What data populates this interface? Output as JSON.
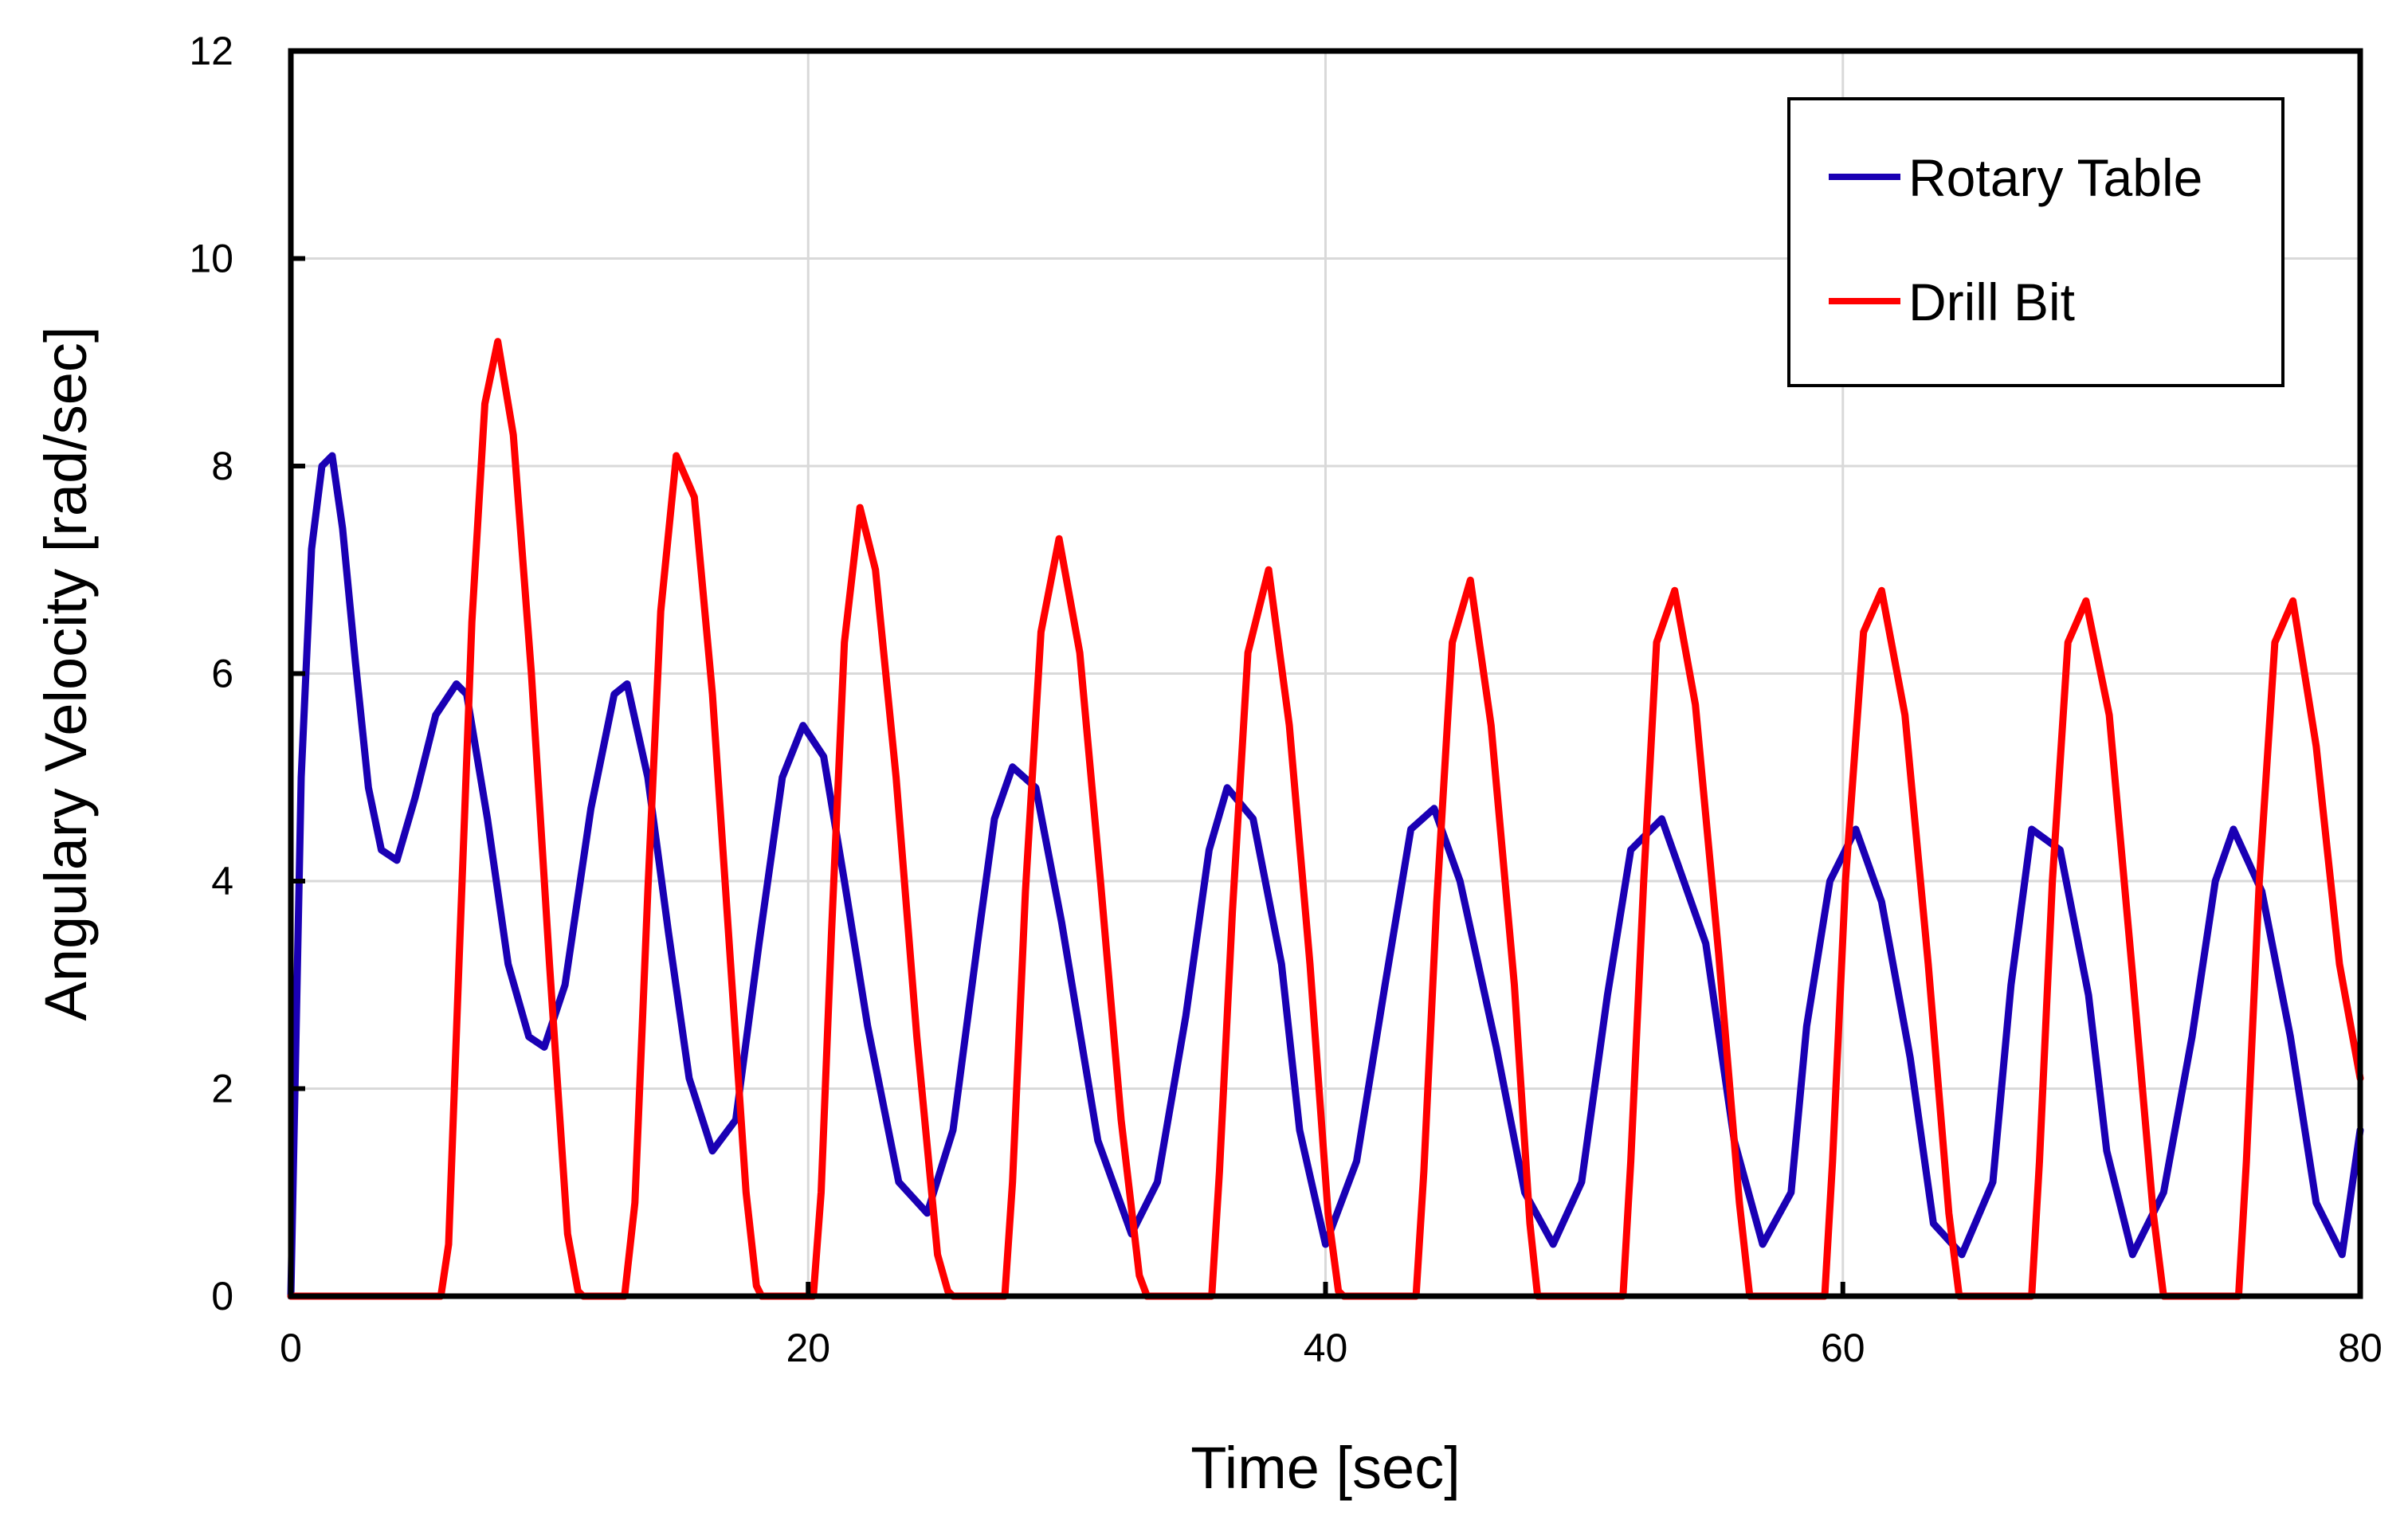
{
  "chart_data": {
    "type": "line",
    "title": "",
    "xlabel": "Time [sec]",
    "ylabel": "Angulary Velocity [rad/sec]",
    "xlim": [
      0,
      80
    ],
    "ylim": [
      0,
      12
    ],
    "xticks": [
      0,
      20,
      40,
      60,
      80
    ],
    "yticks": [
      0,
      2,
      4,
      6,
      8,
      10,
      12
    ],
    "xtick_labels": [
      "0",
      "20",
      "40",
      "60",
      "80"
    ],
    "ytick_labels": [
      "0",
      "2",
      "4",
      "6",
      "8",
      "10",
      "12"
    ],
    "grid": true,
    "legend_position": "top-right",
    "series": [
      {
        "name": "Rotary Table",
        "color": "#1a00b4",
        "x": [
          0,
          0.4,
          0.8,
          1.2,
          1.6,
          2.0,
          2.5,
          3.0,
          3.5,
          4.1,
          4.8,
          5.6,
          6.4,
          6.8,
          7.6,
          8.4,
          9.2,
          9.8,
          10.6,
          11.6,
          12.5,
          13.0,
          13.8,
          14.6,
          15.4,
          16.3,
          17.2,
          18.1,
          19.0,
          19.8,
          20.6,
          21.4,
          22.3,
          23.5,
          24.6,
          25.6,
          26.6,
          27.2,
          27.9,
          28.8,
          29.8,
          31.2,
          32.5,
          33.5,
          34.6,
          35.5,
          36.2,
          37.2,
          38.3,
          39.0,
          40.0,
          41.2,
          42.3,
          43.3,
          44.2,
          45.2,
          46.6,
          47.7,
          48.8,
          49.9,
          50.9,
          51.8,
          53.0,
          54.7,
          55.8,
          56.9,
          58.0,
          58.6,
          59.5,
          60.5,
          61.5,
          62.6,
          63.5,
          64.6,
          65.8,
          66.5,
          67.3,
          68.4,
          69.5,
          70.2,
          71.2,
          72.4,
          73.5,
          74.4,
          75.1,
          76.2,
          77.3,
          78.3,
          79.3,
          80.0
        ],
        "y": [
          0,
          5.0,
          7.2,
          8.0,
          8.1,
          7.4,
          6.1,
          4.9,
          4.3,
          4.2,
          4.8,
          5.6,
          5.9,
          5.8,
          4.6,
          3.2,
          2.5,
          2.4,
          3.0,
          4.7,
          5.8,
          5.9,
          5.0,
          3.5,
          2.1,
          1.4,
          1.7,
          3.4,
          5.0,
          5.5,
          5.2,
          4.0,
          2.6,
          1.1,
          0.8,
          1.6,
          3.5,
          4.6,
          5.1,
          4.9,
          3.6,
          1.5,
          0.6,
          1.1,
          2.7,
          4.3,
          4.9,
          4.6,
          3.2,
          1.6,
          0.5,
          1.3,
          3.0,
          4.5,
          4.7,
          4.0,
          2.4,
          1.0,
          0.5,
          1.1,
          2.9,
          4.3,
          4.6,
          3.4,
          1.5,
          0.5,
          1.0,
          2.6,
          4.0,
          4.5,
          3.8,
          2.3,
          0.7,
          0.4,
          1.1,
          3.0,
          4.5,
          4.3,
          2.9,
          1.4,
          0.4,
          1.0,
          2.5,
          4.0,
          4.5,
          3.9,
          2.5,
          0.9,
          0.4,
          1.6
        ]
      },
      {
        "name": "Drill Bit",
        "color": "#ff0000",
        "x": [
          0,
          5.8,
          6.1,
          6.5,
          7.0,
          7.5,
          8.0,
          8.6,
          9.3,
          10.0,
          10.7,
          11.1,
          11.3,
          12.9,
          13.3,
          13.8,
          14.3,
          14.9,
          15.6,
          16.3,
          17.0,
          17.6,
          18.0,
          18.2,
          20.2,
          20.5,
          20.9,
          21.4,
          22.0,
          22.6,
          23.4,
          24.2,
          25.0,
          25.4,
          25.6,
          27.6,
          27.9,
          28.4,
          29.0,
          29.7,
          30.5,
          31.3,
          32.1,
          32.8,
          33.1,
          35.6,
          35.9,
          36.4,
          37.0,
          37.8,
          38.6,
          39.4,
          40.1,
          40.5,
          40.7,
          43.5,
          43.8,
          44.3,
          44.9,
          45.6,
          46.4,
          47.3,
          47.9,
          48.2,
          51.5,
          51.8,
          52.3,
          52.8,
          53.5,
          54.3,
          55.2,
          56.0,
          56.4,
          59.3,
          59.6,
          60.1,
          60.8,
          61.5,
          62.4,
          63.3,
          64.1,
          64.5,
          67.3,
          67.6,
          68.1,
          68.7,
          69.4,
          70.3,
          71.2,
          72.0,
          72.4,
          75.3,
          75.6,
          76.1,
          76.7,
          77.4,
          78.3,
          79.2,
          80.0
        ],
        "y": [
          0,
          0,
          0.5,
          3.2,
          6.5,
          8.6,
          9.2,
          8.3,
          6.0,
          3.2,
          0.6,
          0.05,
          0,
          0,
          0.9,
          3.9,
          6.6,
          8.1,
          7.7,
          5.8,
          3.2,
          1.0,
          0.1,
          0,
          0,
          1.0,
          3.5,
          6.3,
          7.6,
          7.0,
          5.0,
          2.5,
          0.4,
          0.05,
          0,
          0,
          1.1,
          3.9,
          6.4,
          7.3,
          6.2,
          4.0,
          1.7,
          0.2,
          0,
          0,
          1.2,
          3.7,
          6.2,
          7.0,
          5.5,
          3.2,
          0.8,
          0.05,
          0,
          0,
          1.2,
          3.8,
          6.3,
          6.9,
          5.5,
          3.0,
          0.7,
          0,
          0,
          1.3,
          4.0,
          6.3,
          6.8,
          5.7,
          3.3,
          0.9,
          0,
          0,
          1.3,
          4.0,
          6.4,
          6.8,
          5.6,
          3.2,
          0.8,
          0,
          0,
          1.3,
          4.0,
          6.3,
          6.7,
          5.6,
          3.1,
          0.8,
          0,
          0,
          1.3,
          4.0,
          6.3,
          6.7,
          5.3,
          3.2,
          2.1
        ]
      }
    ]
  }
}
